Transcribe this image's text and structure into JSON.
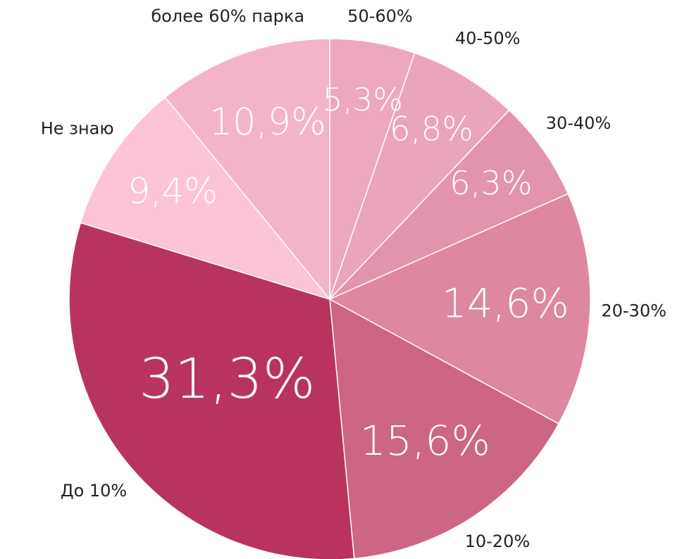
{
  "chart_data": {
    "type": "pie",
    "categories": [
      "50-60%",
      "40-50%",
      "30-40%",
      "20-30%",
      "10-20%",
      "До 10%",
      "Не знаю",
      "более 60% парка"
    ],
    "values": [
      5.3,
      6.8,
      6.3,
      14.6,
      15.6,
      31.3,
      9.4,
      10.9
    ],
    "value_labels": [
      "5,3%",
      "6,8%",
      "6,3%",
      "14,6%",
      "15,6%",
      "31,3%",
      "9,4%",
      "10,9%"
    ],
    "colors": [
      "#eda8bd",
      "#eba5bb",
      "#e394ad",
      "#dd87a0",
      "#cd6585",
      "#b8345e",
      "#fcc4d6",
      "#f4b4c8"
    ]
  }
}
